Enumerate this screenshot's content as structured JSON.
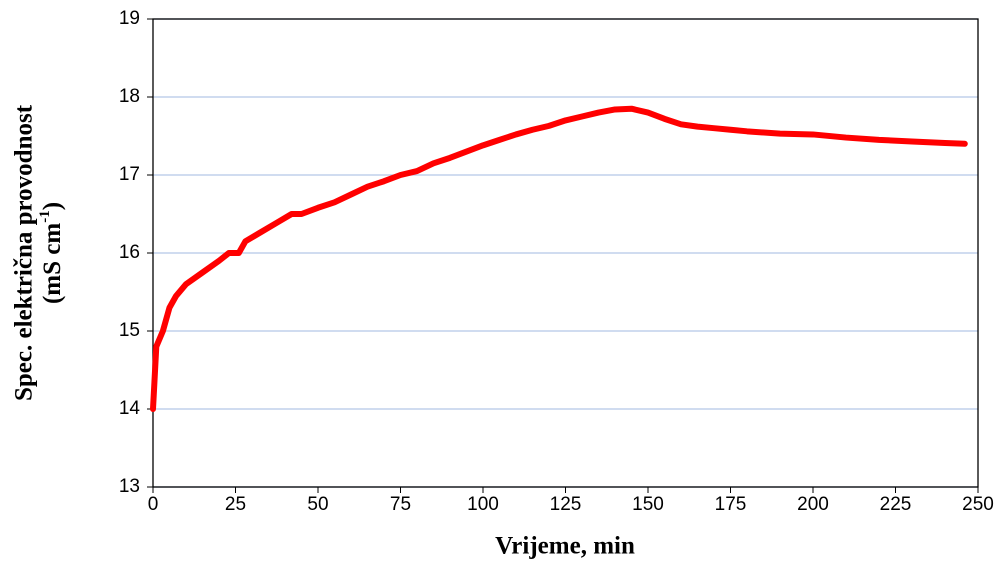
{
  "chart_data": {
    "type": "line",
    "xlabel": "Vrijeme, min",
    "ylabel": "Spec. električna provodnost",
    "ylabel_unit": {
      "before": "(mS cm",
      "sup": "-1",
      "after": ")"
    },
    "x": [
      0,
      1,
      3,
      5,
      7,
      10,
      15,
      20,
      23,
      26,
      28,
      32,
      38,
      42,
      45,
      50,
      55,
      60,
      65,
      70,
      75,
      80,
      85,
      90,
      95,
      100,
      105,
      110,
      115,
      120,
      125,
      130,
      135,
      140,
      145,
      150,
      155,
      160,
      165,
      170,
      175,
      180,
      190,
      200,
      210,
      220,
      230,
      240,
      246
    ],
    "series": [
      {
        "name": "Spec. električna provodnost",
        "color": "#ff0000",
        "values": [
          14.0,
          14.8,
          15.0,
          15.3,
          15.45,
          15.6,
          15.75,
          15.9,
          16.0,
          16.0,
          16.15,
          16.25,
          16.4,
          16.5,
          16.5,
          16.58,
          16.65,
          16.75,
          16.85,
          16.92,
          17.0,
          17.05,
          17.15,
          17.22,
          17.3,
          17.38,
          17.45,
          17.52,
          17.58,
          17.63,
          17.7,
          17.75,
          17.8,
          17.84,
          17.85,
          17.8,
          17.72,
          17.65,
          17.62,
          17.6,
          17.58,
          17.56,
          17.53,
          17.52,
          17.48,
          17.45,
          17.43,
          17.41,
          17.4
        ]
      }
    ],
    "xlim": [
      0,
      250
    ],
    "xticks": [
      0,
      25,
      50,
      75,
      100,
      125,
      150,
      175,
      200,
      225,
      250
    ],
    "ylim": [
      13,
      19
    ],
    "yticks": [
      13,
      14,
      15,
      16,
      17,
      18,
      19
    ],
    "grid": true,
    "grid_color": "#b4c7e7"
  }
}
